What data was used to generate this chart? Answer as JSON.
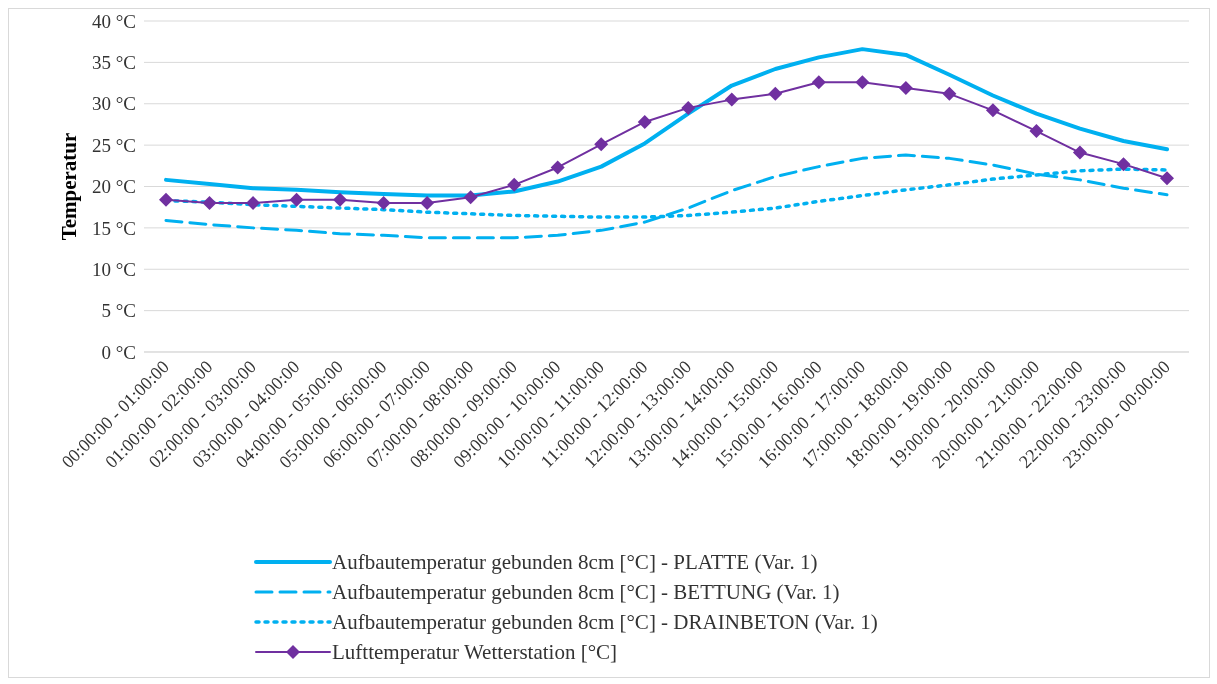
{
  "chart_data": {
    "type": "line",
    "ylabel": "Temperatur",
    "categories": [
      "00:00:00 - 01:00:00",
      "01:00:00 - 02:00:00",
      "02:00:00 - 03:00:00",
      "03:00:00 - 04:00:00",
      "04:00:00 - 05:00:00",
      "05:00:00 - 06:00:00",
      "06:00:00 - 07:00:00",
      "07:00:00 - 08:00:00",
      "08:00:00 - 09:00:00",
      "09:00:00 - 10:00:00",
      "10:00:00 - 11:00:00",
      "11:00:00 - 12:00:00",
      "12:00:00 - 13:00:00",
      "13:00:00 - 14:00:00",
      "14:00:00 - 15:00:00",
      "15:00:00 - 16:00:00",
      "16:00:00 - 17:00:00",
      "17:00:00 - 18:00:00",
      "18:00:00 - 19:00:00",
      "19:00:00 - 20:00:00",
      "20:00:00 - 21:00:00",
      "21:00:00 - 22:00:00",
      "22:00:00 - 23:00:00",
      "23:00:00 - 00:00:00"
    ],
    "series": [
      {
        "name": "Aufbautemperatur gebunden 8cm [°C] - PLATTE (Var. 1)",
        "color": "#00b0f0",
        "line_style": "solid",
        "marker": "none",
        "values": [
          20.8,
          20.3,
          19.8,
          19.6,
          19.3,
          19.1,
          18.9,
          18.9,
          19.4,
          20.6,
          22.4,
          25.2,
          28.8,
          32.2,
          34.2,
          35.6,
          36.6,
          35.9,
          33.5,
          31.0,
          28.8,
          27.0,
          25.5,
          24.5
        ]
      },
      {
        "name": "Aufbautemperatur gebunden 8cm [°C] - BETTUNG (Var. 1)",
        "color": "#00b0f0",
        "line_style": "dashed",
        "marker": "none",
        "values": [
          15.9,
          15.4,
          15.0,
          14.7,
          14.3,
          14.1,
          13.8,
          13.8,
          13.8,
          14.1,
          14.7,
          15.7,
          17.4,
          19.5,
          21.2,
          22.4,
          23.4,
          23.8,
          23.4,
          22.6,
          21.5,
          20.8,
          19.8,
          19.0
        ]
      },
      {
        "name": "Aufbautemperatur gebunden 8cm [°C] - DRAINBETON (Var. 1)",
        "color": "#00b0f0",
        "line_style": "dotted",
        "marker": "none",
        "values": [
          18.3,
          18.1,
          17.8,
          17.6,
          17.4,
          17.2,
          16.9,
          16.7,
          16.5,
          16.4,
          16.3,
          16.3,
          16.5,
          16.9,
          17.4,
          18.2,
          18.9,
          19.6,
          20.2,
          20.9,
          21.4,
          21.9,
          22.1,
          22.0
        ]
      },
      {
        "name": "Lufttemperatur Wetterstation [°C]",
        "color": "#7030a0",
        "line_style": "solid",
        "marker": "diamond",
        "values": [
          18.4,
          18.0,
          18.0,
          18.4,
          18.4,
          18.0,
          18.0,
          18.7,
          20.2,
          22.3,
          25.1,
          27.8,
          29.5,
          30.5,
          31.2,
          32.6,
          32.6,
          31.9,
          31.2,
          29.2,
          26.7,
          24.1,
          22.7,
          21.0
        ]
      }
    ],
    "ylim": [
      0,
      40
    ],
    "yticks": [
      {
        "value": 0,
        "label": "0 °C"
      },
      {
        "value": 5,
        "label": "5 °C"
      },
      {
        "value": 10,
        "label": "10 °C"
      },
      {
        "value": 15,
        "label": "15 °C"
      },
      {
        "value": 20,
        "label": "20 °C"
      },
      {
        "value": 25,
        "label": "25 °C"
      },
      {
        "value": 30,
        "label": "30 °C"
      },
      {
        "value": 35,
        "label": "35 °C"
      },
      {
        "value": 40,
        "label": "40 °C"
      }
    ],
    "grid": "y",
    "legend": "bottom"
  }
}
